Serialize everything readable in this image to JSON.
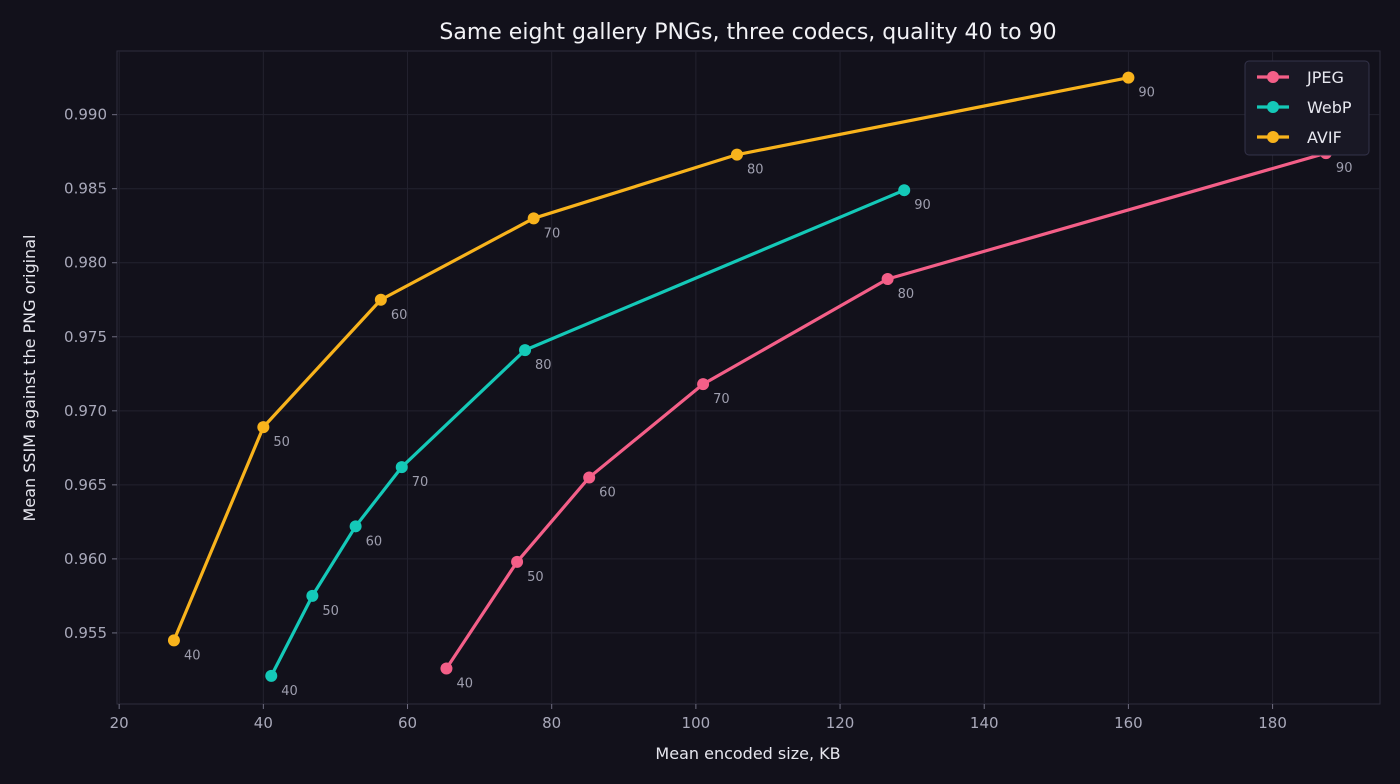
{
  "colors": {
    "background": "#12111b",
    "plot_background": "#12111b",
    "grid": "#23222f",
    "frame": "#2e2d3c"
  },
  "chart_data": {
    "type": "line",
    "title": "Same eight gallery PNGs, three codecs, quality 40 to 90",
    "xlabel": "Mean encoded size, KB",
    "ylabel": "Mean SSIM against the PNG original",
    "xlim": [
      19.7,
      194.9
    ],
    "ylim": [
      0.9502,
      0.9943
    ],
    "xticks": [
      "20",
      "40",
      "60",
      "80",
      "100",
      "120",
      "140",
      "160",
      "180"
    ],
    "yticks": [
      "0.955",
      "0.960",
      "0.965",
      "0.970",
      "0.975",
      "0.980",
      "0.985",
      "0.990"
    ],
    "grid": true,
    "legend_position": "top-right",
    "point_label_series_key": "quality",
    "series": [
      {
        "name": "JPEG",
        "color": "#f45f88",
        "quality": [
          "40",
          "50",
          "60",
          "70",
          "80",
          "90"
        ],
        "x": [
          65.4,
          75.2,
          85.2,
          101.0,
          126.6,
          187.4
        ],
        "y": [
          0.9526,
          0.9598,
          0.9655,
          0.9718,
          0.9789,
          0.9874
        ]
      },
      {
        "name": "WebP",
        "color": "#14c9b8",
        "quality": [
          "40",
          "50",
          "60",
          "70",
          "80",
          "90"
        ],
        "x": [
          41.1,
          46.8,
          52.8,
          59.2,
          76.3,
          128.9
        ],
        "y": [
          0.9521,
          0.9575,
          0.9622,
          0.9662,
          0.9741,
          0.9849
        ]
      },
      {
        "name": "AVIF",
        "color": "#f8b31c",
        "quality": [
          "40",
          "50",
          "60",
          "70",
          "80",
          "90"
        ],
        "x": [
          27.6,
          40.0,
          56.3,
          77.5,
          105.7,
          160.0
        ],
        "y": [
          0.9545,
          0.9689,
          0.9775,
          0.983,
          0.9873,
          0.9925
        ]
      }
    ]
  }
}
